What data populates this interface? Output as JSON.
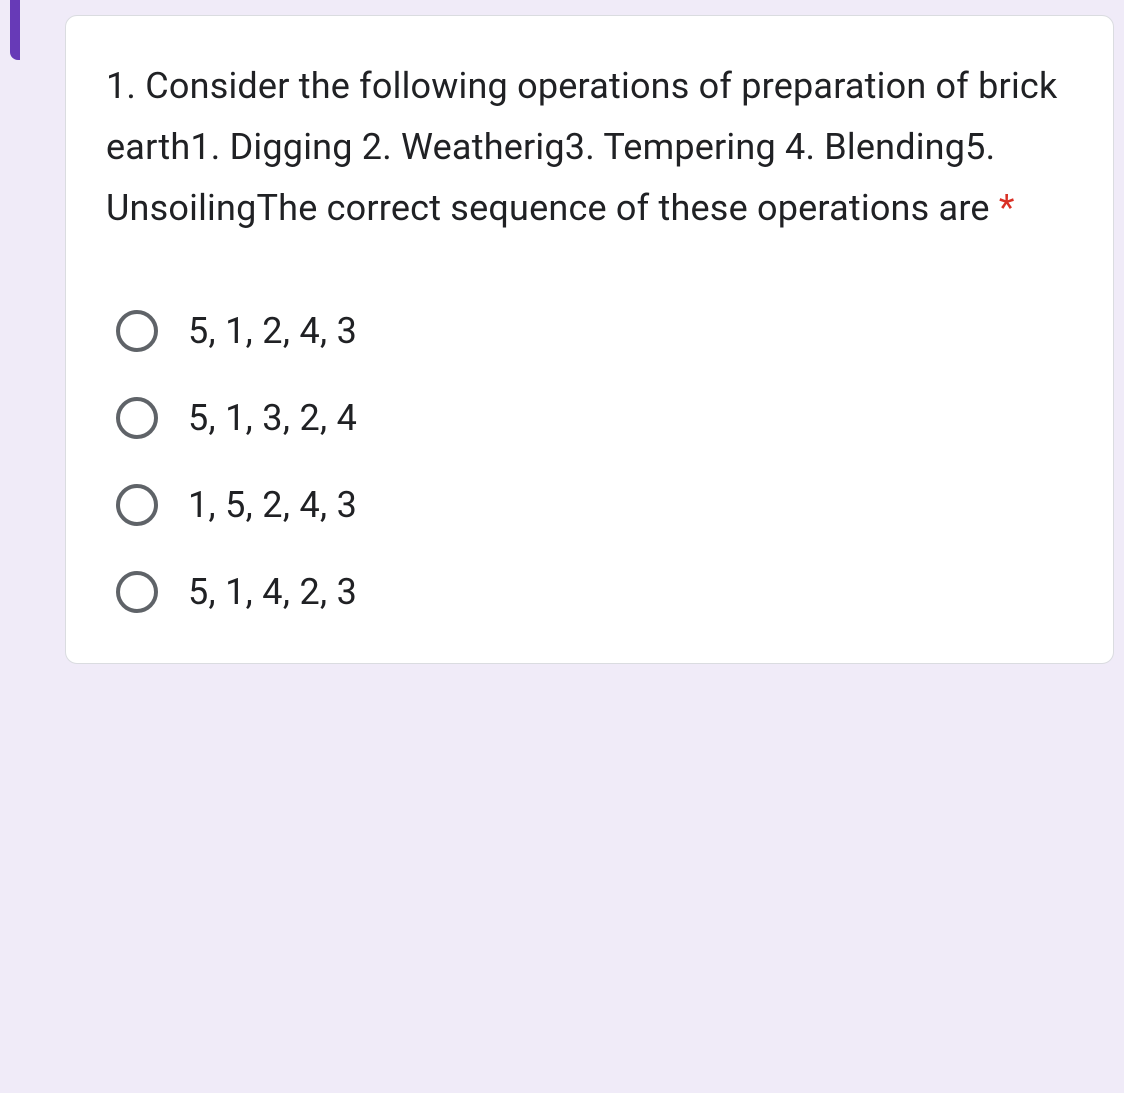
{
  "question": {
    "text": "1. Consider the following operations of preparation of brick earth1. Digging 2. Weatherig3. Tempering 4. Blending5. UnsoilingThe correct sequence of these operations are ",
    "required_marker": "*"
  },
  "options": [
    {
      "label": " 5, 1, 2, 4, 3"
    },
    {
      "label": " 5, 1, 3, 2, 4"
    },
    {
      "label": " 1, 5, 2, 4, 3"
    },
    {
      "label": " 5, 1, 4, 2, 3"
    }
  ],
  "colors": {
    "background": "#f0ebf8",
    "card_bg": "#ffffff",
    "card_border": "#dadce0",
    "text": "#202124",
    "radio_border": "#5f6368",
    "required": "#d93025",
    "accent_bar": "#673ab7"
  }
}
